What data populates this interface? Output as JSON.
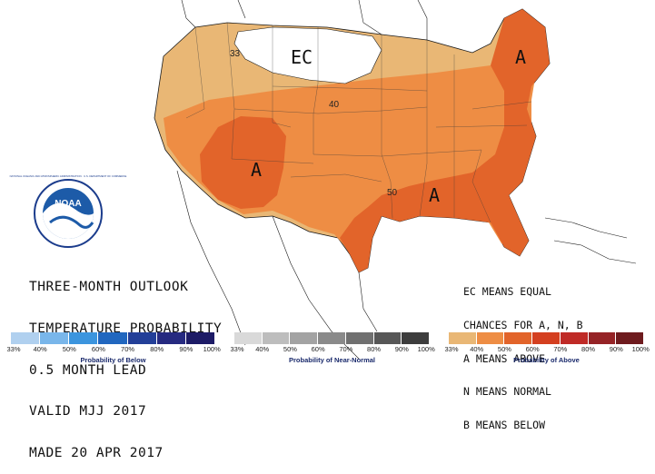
{
  "map": {
    "ec_label": "EC",
    "above_labels": [
      "A",
      "A",
      "A"
    ],
    "contour_labels": [
      "33",
      "40",
      "50"
    ]
  },
  "title": {
    "line1": "THREE-MONTH OUTLOOK",
    "line2": "TEMPERATURE PROBABILITY",
    "line3": "0.5 MONTH LEAD",
    "line4": "VALID MJJ 2017",
    "line5": "MADE 20 APR 2017"
  },
  "notes": {
    "line1": "EC MEANS EQUAL",
    "line2": "CHANCES FOR A, N, B",
    "line3": "A MEANS ABOVE",
    "line4": "N MEANS NORMAL",
    "line5": "B MEANS BELOW"
  },
  "logo": {
    "text": "NOAA",
    "ring_text": "NATIONAL OCEANIC AND ATMOSPHERIC ADMINISTRATION · U.S. DEPARTMENT OF COMMERCE"
  },
  "scales": [
    {
      "caption": "Probability of Below",
      "ticks": [
        "33%",
        "40%",
        "50%",
        "60%",
        "70%",
        "80%",
        "90%",
        "100%"
      ],
      "colors": [
        "#b0d0ef",
        "#79b6ea",
        "#3c95de",
        "#2167bf",
        "#233f98",
        "#262a80",
        "#1d1b66"
      ]
    },
    {
      "caption": "Probability of Near-Normal",
      "ticks": [
        "33%",
        "40%",
        "50%",
        "60%",
        "70%",
        "80%",
        "90%",
        "100%"
      ],
      "colors": [
        "#d9d9d9",
        "#bdbdbd",
        "#a3a3a3",
        "#8a8a8a",
        "#707070",
        "#575757",
        "#3d3d3d"
      ]
    },
    {
      "caption": "Probability of Above",
      "ticks": [
        "33%",
        "40%",
        "50%",
        "60%",
        "70%",
        "80%",
        "90%",
        "100%"
      ],
      "colors": [
        "#e9b775",
        "#ee8d44",
        "#e2642a",
        "#d43f1f",
        "#bf2a26",
        "#952326",
        "#6e1b1e"
      ]
    }
  ],
  "colors": {
    "above_33": "#e9b775",
    "above_40": "#ee8d44",
    "above_50": "#e2642a",
    "ec": "#ffffff",
    "outline": "#1a1a1a"
  }
}
